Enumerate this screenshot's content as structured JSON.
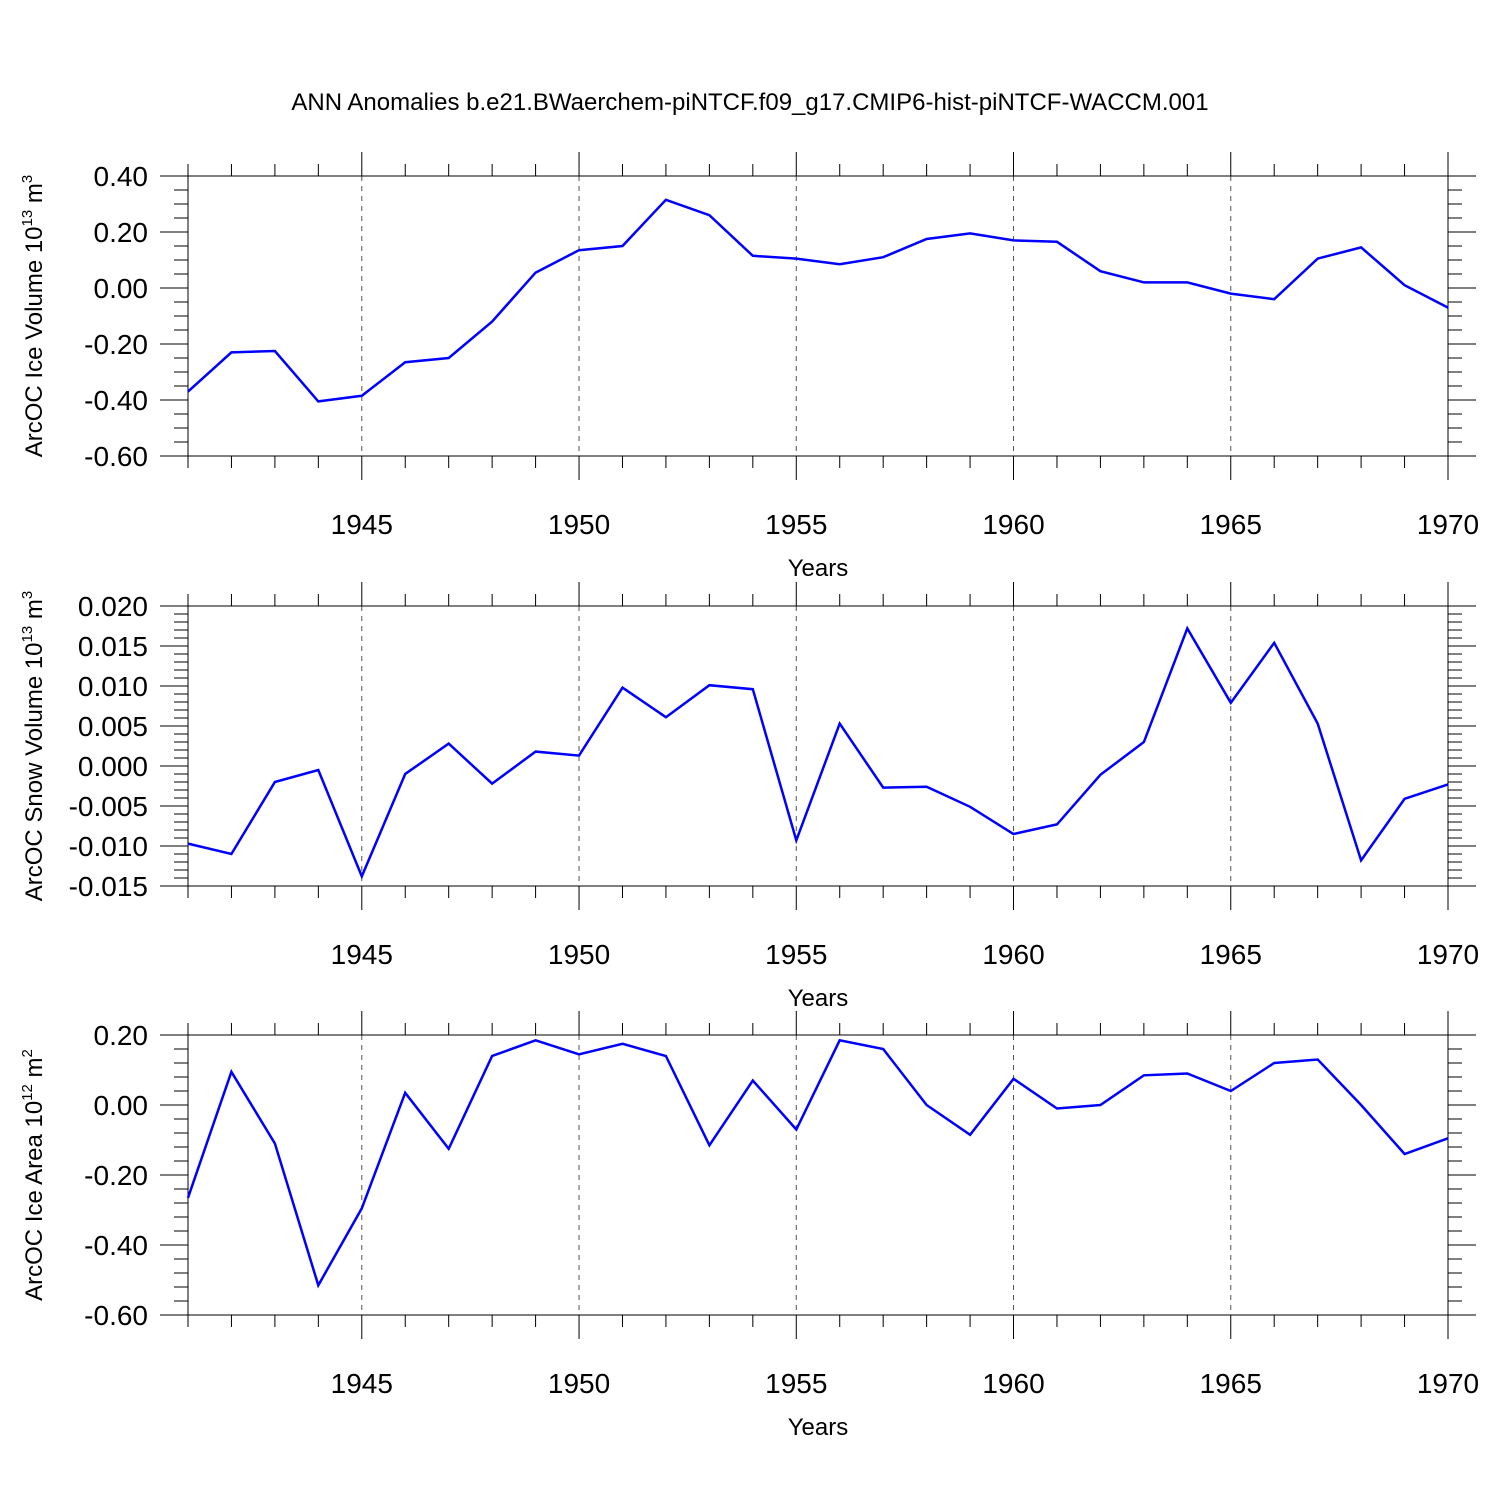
{
  "title": "ANN Anomalies b.e21.BWaerchem-piNTCF.f09_g17.CMIP6-hist-piNTCF-WACCM.001",
  "chart_data": [
    {
      "type": "line",
      "title": "ANN Anomalies b.e21.BWaerchem-piNTCF.f09_g17.CMIP6-hist-piNTCF-WACCM.001",
      "xlabel": "Years",
      "ylabel_main": "ArcOC Ice Volume 10",
      "ylabel_exp": "13",
      "ylabel_unit": " m",
      "ylabel_unit_exp": "3",
      "xlim": [
        1941,
        1970
      ],
      "ylim": [
        -0.6,
        0.4
      ],
      "yticks": [
        -0.6,
        -0.4,
        -0.2,
        0.0,
        0.2,
        0.4
      ],
      "ytick_labels": [
        "-0.60",
        "-0.40",
        "-0.20",
        "0.00",
        "0.20",
        "0.40"
      ],
      "xticks": [
        1945,
        1950,
        1955,
        1960,
        1965,
        1970
      ],
      "xtick_labels": [
        "1945",
        "1950",
        "1955",
        "1960",
        "1965",
        "1970"
      ],
      "color": "#0000ff",
      "x": [
        1941,
        1942,
        1943,
        1944,
        1945,
        1946,
        1947,
        1948,
        1949,
        1950,
        1951,
        1952,
        1953,
        1954,
        1955,
        1956,
        1957,
        1958,
        1959,
        1960,
        1961,
        1962,
        1963,
        1964,
        1965,
        1966,
        1967,
        1968,
        1969,
        1970
      ],
      "y": [
        -0.37,
        -0.23,
        -0.225,
        -0.405,
        -0.385,
        -0.265,
        -0.25,
        -0.12,
        0.055,
        0.135,
        0.15,
        0.315,
        0.26,
        0.115,
        0.105,
        0.085,
        0.11,
        0.175,
        0.195,
        0.17,
        0.165,
        0.06,
        0.02,
        0.02,
        -0.02,
        -0.04,
        0.105,
        0.145,
        0.01,
        -0.07
      ]
    },
    {
      "type": "line",
      "xlabel": "Years",
      "ylabel_main": "ArcOC Snow Volume 10",
      "ylabel_exp": "13",
      "ylabel_unit": " m",
      "ylabel_unit_exp": "3",
      "xlim": [
        1941,
        1970
      ],
      "ylim": [
        -0.015,
        0.02
      ],
      "yticks": [
        -0.015,
        -0.01,
        -0.005,
        0.0,
        0.005,
        0.01,
        0.015,
        0.02
      ],
      "ytick_labels": [
        "-0.015",
        "-0.010",
        "-0.005",
        "0.000",
        "0.005",
        "0.010",
        "0.015",
        "0.020"
      ],
      "xticks": [
        1945,
        1950,
        1955,
        1960,
        1965,
        1970
      ],
      "xtick_labels": [
        "1945",
        "1950",
        "1955",
        "1960",
        "1965",
        "1970"
      ],
      "color": "#0000ff",
      "x": [
        1941,
        1942,
        1943,
        1944,
        1945,
        1946,
        1947,
        1948,
        1949,
        1950,
        1951,
        1952,
        1953,
        1954,
        1955,
        1956,
        1957,
        1958,
        1959,
        1960,
        1961,
        1962,
        1963,
        1964,
        1965,
        1966,
        1967,
        1968,
        1969,
        1970
      ],
      "y": [
        -0.0097,
        -0.011,
        -0.002,
        -0.0005,
        -0.0138,
        -0.001,
        0.0028,
        -0.0022,
        0.0018,
        0.0013,
        0.0098,
        0.0061,
        0.0101,
        0.0096,
        -0.0093,
        0.0053,
        -0.0027,
        -0.0026,
        -0.0051,
        -0.0085,
        -0.0073,
        -0.0011,
        0.003,
        0.0172,
        0.0079,
        0.0154,
        0.0053,
        -0.0118,
        -0.0041,
        -0.0023
      ]
    },
    {
      "type": "line",
      "xlabel": "Years",
      "ylabel_main": "ArcOC Ice Area 10",
      "ylabel_exp": "12",
      "ylabel_unit": " m",
      "ylabel_unit_exp": "2",
      "xlim": [
        1941,
        1970
      ],
      "ylim": [
        -0.6,
        0.2
      ],
      "yticks": [
        -0.6,
        -0.4,
        -0.2,
        0.0,
        0.2
      ],
      "ytick_labels": [
        "-0.60",
        "-0.40",
        "-0.20",
        "0.00",
        "0.20"
      ],
      "xticks": [
        1945,
        1950,
        1955,
        1960,
        1965,
        1970
      ],
      "xtick_labels": [
        "1945",
        "1950",
        "1955",
        "1960",
        "1965",
        "1970"
      ],
      "color": "#0000ff",
      "x": [
        1941,
        1942,
        1943,
        1944,
        1945,
        1946,
        1947,
        1948,
        1949,
        1950,
        1951,
        1952,
        1953,
        1954,
        1955,
        1956,
        1957,
        1958,
        1959,
        1960,
        1961,
        1962,
        1963,
        1964,
        1965,
        1966,
        1967,
        1968,
        1969,
        1970
      ],
      "y": [
        -0.265,
        0.095,
        -0.11,
        -0.515,
        -0.295,
        0.035,
        -0.125,
        0.14,
        0.185,
        0.145,
        0.175,
        0.14,
        -0.115,
        0.07,
        -0.07,
        0.185,
        0.16,
        0.0,
        -0.085,
        0.075,
        -0.01,
        0.0,
        0.085,
        0.09,
        0.04,
        0.12,
        0.13,
        0.0,
        -0.14,
        -0.095
      ]
    }
  ]
}
